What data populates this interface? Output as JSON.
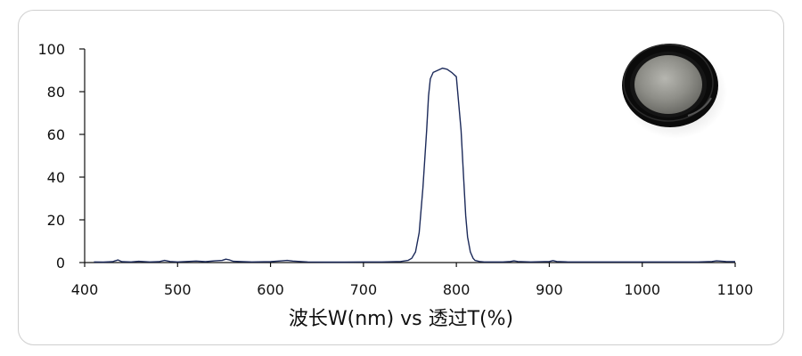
{
  "chart_data": {
    "type": "line",
    "title": "",
    "xlabel": "波长W(nm) vs 透过T(%)",
    "ylabel": "",
    "xlim": [
      400,
      1100
    ],
    "ylim": [
      0,
      100
    ],
    "x_ticks": [
      400,
      500,
      600,
      700,
      800,
      900,
      1000,
      1100
    ],
    "y_ticks": [
      0,
      20,
      40,
      60,
      80,
      100
    ],
    "grid": false,
    "legend": "none",
    "series": [
      {
        "color": "#1c2a5a",
        "x": [
          410,
          420,
          430,
          436,
          440,
          450,
          458,
          470,
          480,
          486,
          492,
          500,
          510,
          520,
          530,
          540,
          548,
          552,
          556,
          560,
          570,
          580,
          600,
          612,
          618,
          624,
          640,
          660,
          680,
          700,
          720,
          740,
          748,
          752,
          756,
          760,
          764,
          768,
          770,
          772,
          775,
          780,
          785,
          790,
          795,
          800,
          805,
          808,
          810,
          812,
          815,
          818,
          820,
          825,
          830,
          840,
          850,
          858,
          862,
          866,
          880,
          900,
          904,
          908,
          920,
          940,
          960,
          980,
          1000,
          1020,
          1040,
          1060,
          1075,
          1080,
          1090,
          1100
        ],
        "y": [
          0.3,
          0.2,
          0.4,
          1.2,
          0.4,
          0.3,
          0.6,
          0.3,
          0.4,
          1.0,
          0.5,
          0.3,
          0.5,
          0.7,
          0.4,
          0.8,
          1.0,
          1.6,
          1.2,
          0.6,
          0.4,
          0.3,
          0.4,
          0.8,
          1.0,
          0.7,
          0.3,
          0.2,
          0.2,
          0.3,
          0.3,
          0.5,
          1.0,
          2.0,
          5.0,
          14,
          35,
          62,
          78,
          86,
          89,
          90,
          91,
          90.5,
          89,
          87,
          62,
          38,
          22,
          12,
          5,
          2,
          1,
          0.5,
          0.3,
          0.3,
          0.3,
          0.5,
          0.8,
          0.5,
          0.3,
          0.5,
          0.9,
          0.5,
          0.3,
          0.3,
          0.3,
          0.3,
          0.3,
          0.3,
          0.3,
          0.3,
          0.5,
          0.8,
          0.5,
          0.4
        ]
      }
    ]
  },
  "inset": {
    "icon": "filter-lens-photo"
  }
}
